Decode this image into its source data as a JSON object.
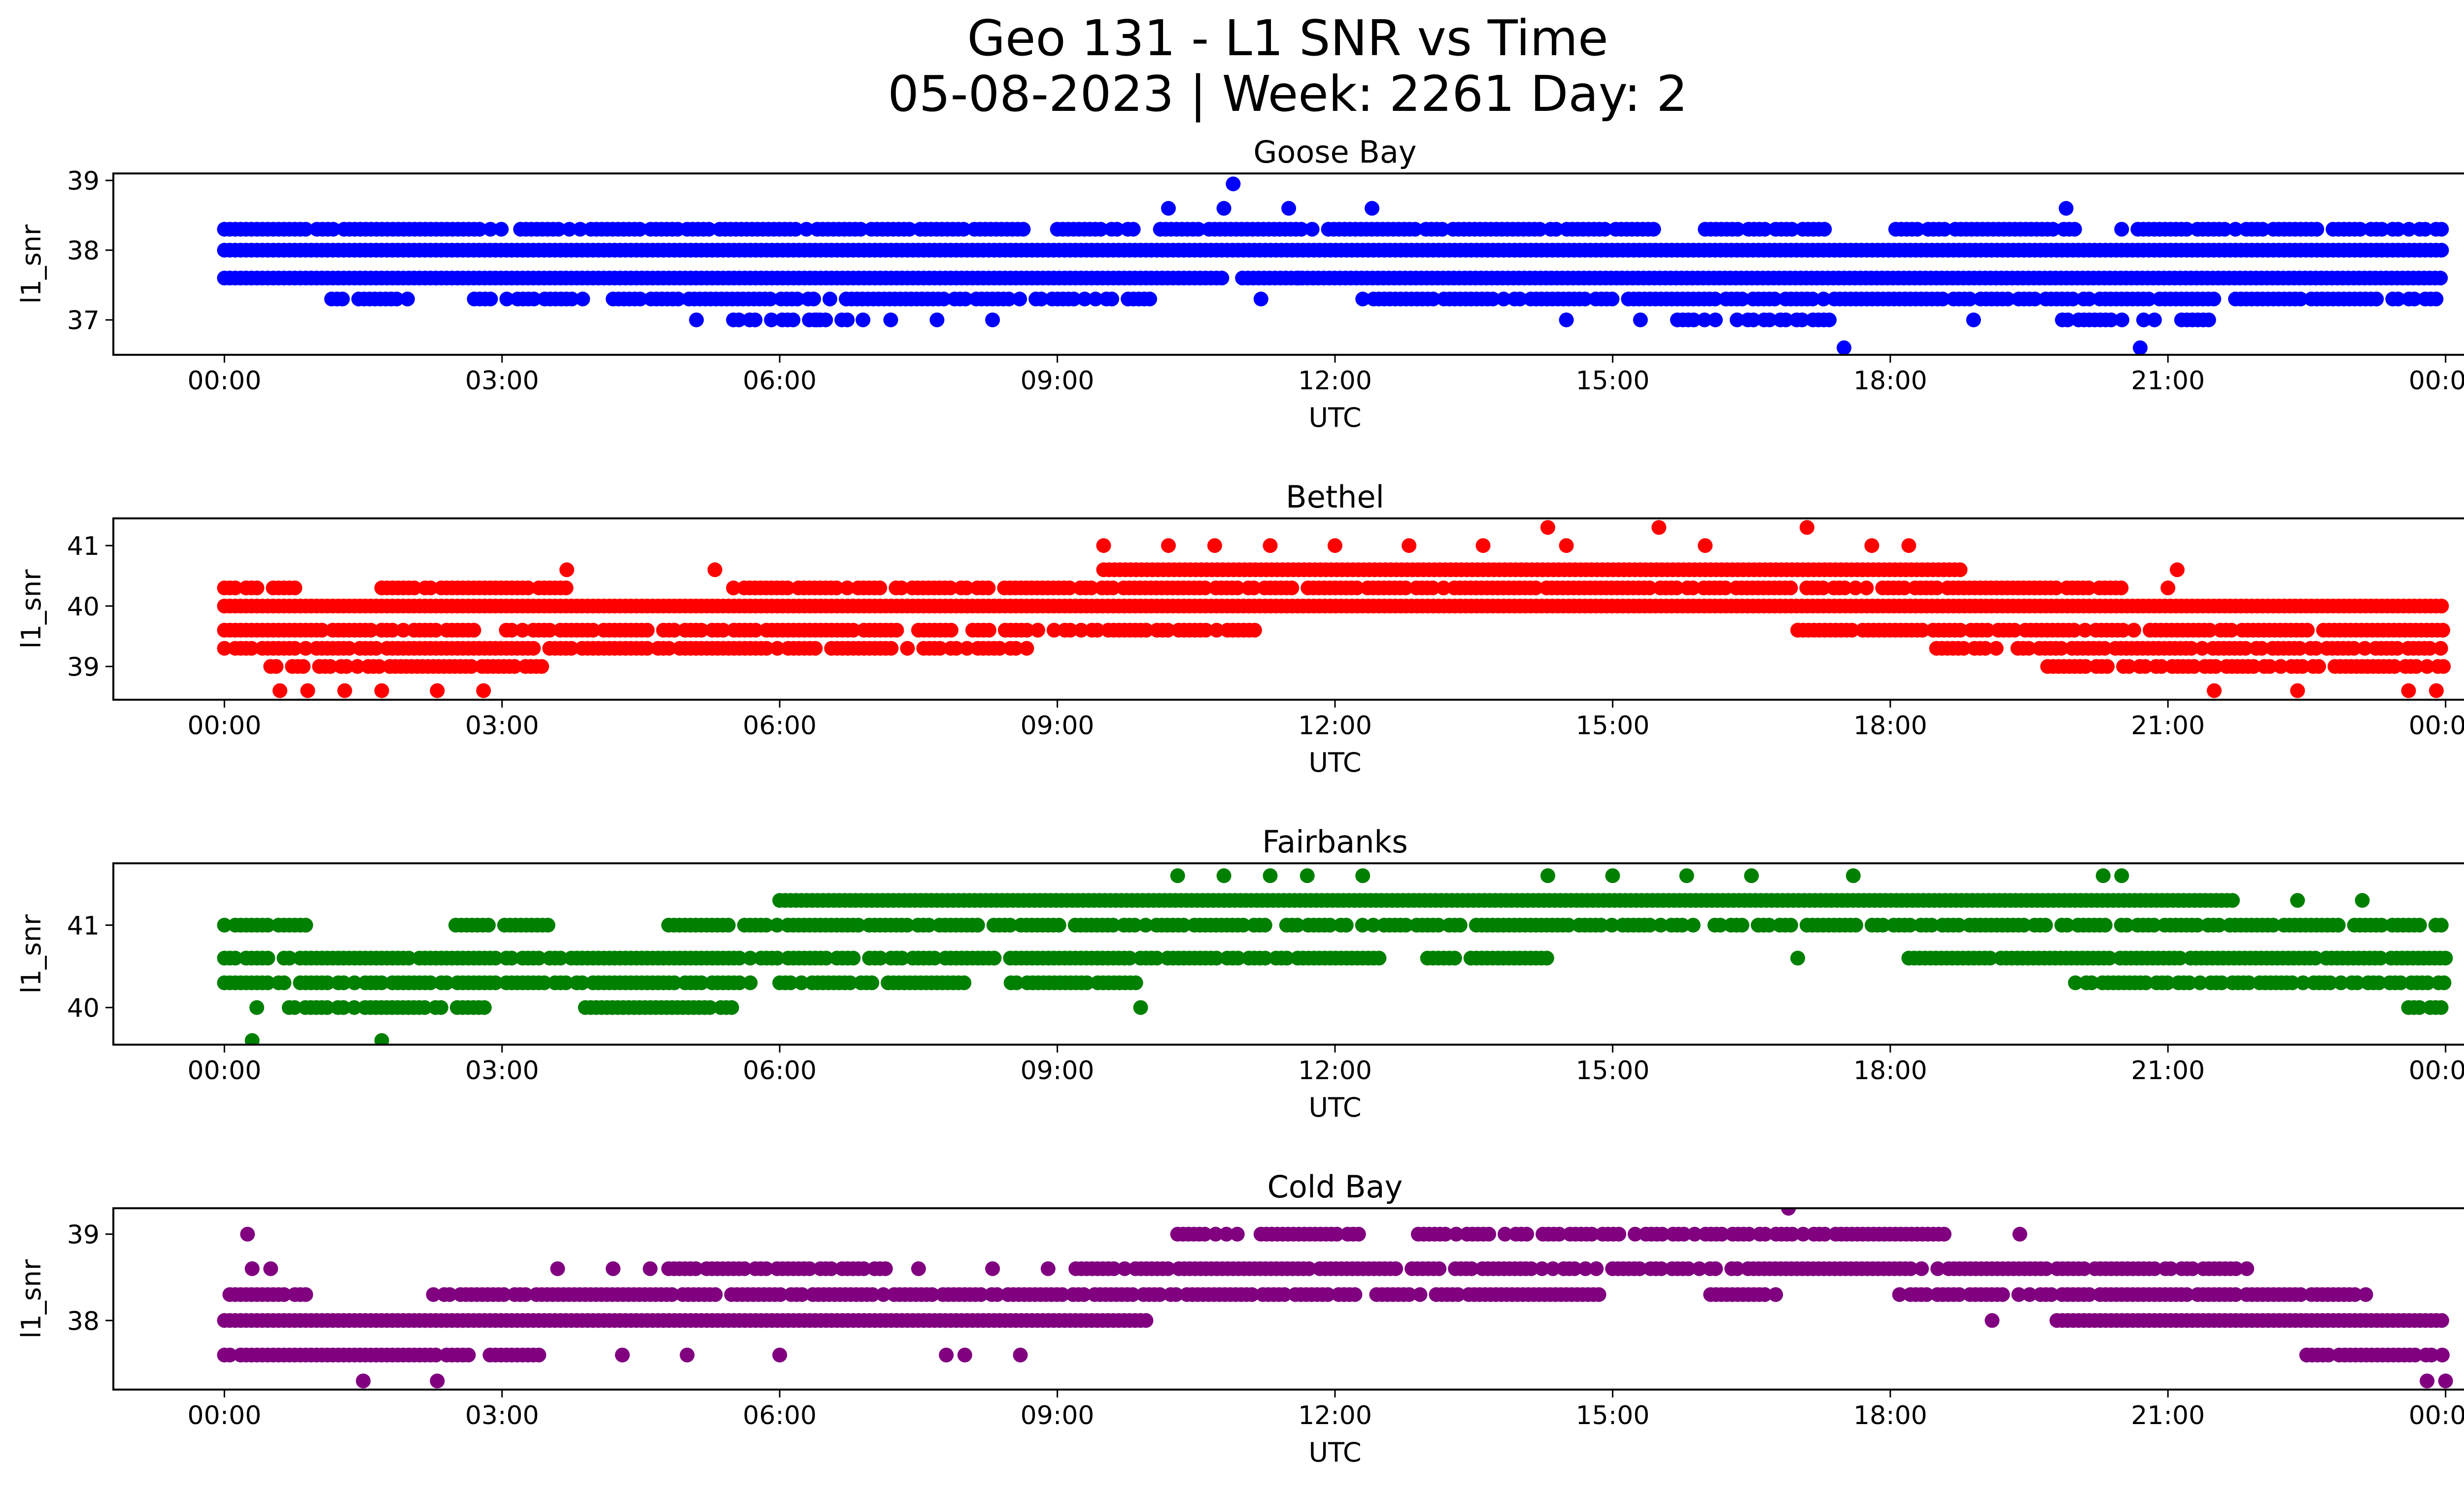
{
  "chart_data": {
    "type": "scatter",
    "title": "Geo 131 - L1 SNR vs Time",
    "subtitle": "05-08-2023 | Week: 2261 Day: 2",
    "x_tick_labels": [
      "00:00",
      "03:00",
      "06:00",
      "09:00",
      "12:00",
      "15:00",
      "18:00",
      "21:00",
      "00:00"
    ],
    "x_ticks_hours": [
      0,
      3,
      6,
      9,
      12,
      15,
      18,
      21,
      24
    ],
    "xlim_hours": [
      -1.2,
      25.2
    ],
    "xlabel": "UTC",
    "ylabel": "l1_snr",
    "grid": false,
    "legend": "none",
    "panels": [
      {
        "title": "Goose Bay",
        "color": "#0000ff",
        "ylim": [
          36.5,
          39.1
        ],
        "y_ticks": [
          37,
          38,
          39
        ],
        "y_tick_labels": [
          "37",
          "38",
          "39"
        ],
        "bands": [
          {
            "y": 38.3,
            "segments": [
              [
                0,
                0.9
              ],
              [
                1.0,
                3.0
              ],
              [
                3.2,
                4.9
              ],
              [
                5.0,
                8.7
              ],
              [
                9.0,
                15.5
              ],
              [
                16.0,
                17.3
              ],
              [
                18.0,
                20.0
              ],
              [
                20.5,
                24
              ]
            ],
            "jitter": 0.15
          },
          {
            "y": 38.0,
            "segments": [
              [
                0,
                24
              ]
            ],
            "jitter": 0
          },
          {
            "y": 37.6,
            "segments": [
              [
                0,
                10.8
              ],
              [
                11.0,
                24
              ]
            ],
            "jitter": 0
          },
          {
            "y": 37.3,
            "segments": [
              [
                1.1,
                2.0
              ],
              [
                2.7,
                3.9
              ],
              [
                4.2,
                10.0
              ],
              [
                12.3,
                24
              ]
            ],
            "jitter": 0.18
          },
          {
            "y": 37.0,
            "segments": [
              [
                5.5,
                6.8
              ],
              [
                15.7,
                17.4
              ],
              [
                19.8,
                21.6
              ]
            ],
            "jitter": 0.3
          }
        ],
        "points": [
          [
            5.1,
            37.0
          ],
          [
            6.4,
            37.0
          ],
          [
            6.9,
            37.0
          ],
          [
            7.2,
            37.0
          ],
          [
            7.7,
            37.0
          ],
          [
            8.3,
            37.0
          ],
          [
            10.2,
            38.6
          ],
          [
            10.8,
            38.6
          ],
          [
            10.9,
            38.95
          ],
          [
            11.5,
            38.6
          ],
          [
            12.4,
            38.6
          ],
          [
            11.2,
            37.3
          ],
          [
            11.6,
            37.6
          ],
          [
            14.5,
            37.0
          ],
          [
            15.3,
            37.0
          ],
          [
            17.5,
            36.6
          ],
          [
            18.9,
            37.0
          ],
          [
            19.9,
            38.6
          ],
          [
            20.7,
            36.6
          ]
        ]
      },
      {
        "title": "Bethel",
        "color": "#ff0000",
        "ylim": [
          38.45,
          41.45
        ],
        "y_ticks": [
          39,
          40,
          41
        ],
        "y_tick_labels": [
          "39",
          "40",
          "41"
        ],
        "bands": [
          {
            "y": 40.6,
            "segments": [
              [
                9.5,
                18.8
              ]
            ],
            "jitter": 0
          },
          {
            "y": 40.3,
            "segments": [
              [
                0,
                0.8
              ],
              [
                1.7,
                3.7
              ],
              [
                5.5,
                20.6
              ]
            ],
            "jitter": 0.15
          },
          {
            "y": 40.0,
            "segments": [
              [
                0,
                24
              ]
            ],
            "jitter": 0
          },
          {
            "y": 39.6,
            "segments": [
              [
                0,
                7.3
              ],
              [
                7.5,
                11.3
              ],
              [
                17.0,
                24
              ]
            ],
            "jitter": 0.15
          },
          {
            "y": 39.3,
            "segments": [
              [
                0,
                8.7
              ],
              [
                18.5,
                24
              ]
            ],
            "jitter": 0.15
          },
          {
            "y": 39.0,
            "segments": [
              [
                0.5,
                3.5
              ],
              [
                19.7,
                24
              ]
            ],
            "jitter": 0.18
          }
        ],
        "points": [
          [
            0.6,
            38.6
          ],
          [
            0.9,
            38.6
          ],
          [
            1.3,
            38.6
          ],
          [
            1.7,
            38.6
          ],
          [
            2.3,
            38.6
          ],
          [
            2.8,
            38.6
          ],
          [
            3.7,
            40.6
          ],
          [
            5.3,
            40.6
          ],
          [
            9.5,
            41.0
          ],
          [
            10.2,
            41.0
          ],
          [
            10.7,
            41.0
          ],
          [
            11.3,
            41.0
          ],
          [
            12.0,
            41.0
          ],
          [
            12.8,
            41.0
          ],
          [
            13.6,
            41.0
          ],
          [
            14.3,
            41.3
          ],
          [
            15.5,
            41.3
          ],
          [
            17.1,
            41.3
          ],
          [
            14.5,
            41.0
          ],
          [
            16.0,
            41.0
          ],
          [
            17.8,
            41.0
          ],
          [
            18.2,
            41.0
          ],
          [
            21.1,
            40.6
          ],
          [
            21.5,
            38.6
          ],
          [
            22.4,
            38.6
          ],
          [
            23.6,
            38.6
          ],
          [
            23.9,
            38.6
          ],
          [
            21.0,
            40.3
          ]
        ]
      },
      {
        "title": "Fairbanks",
        "color": "#008000",
        "ylim": [
          39.55,
          41.75
        ],
        "y_ticks": [
          40,
          41
        ],
        "y_tick_labels": [
          "40",
          "41"
        ],
        "bands": [
          {
            "y": 41.3,
            "segments": [
              [
                6.0,
                21.7
              ]
            ],
            "jitter": 0
          },
          {
            "y": 41.0,
            "segments": [
              [
                0,
                0.9
              ],
              [
                2.5,
                3.5
              ],
              [
                4.8,
                24
              ]
            ],
            "jitter": 0.2
          },
          {
            "y": 40.6,
            "segments": [
              [
                0,
                12.5
              ],
              [
                13.0,
                14.3
              ],
              [
                18.2,
                24
              ]
            ],
            "jitter": 0.1
          },
          {
            "y": 40.3,
            "segments": [
              [
                0,
                5.7
              ],
              [
                6.0,
                8.0
              ],
              [
                8.5,
                9.9
              ],
              [
                20.0,
                24
              ]
            ],
            "jitter": 0.2
          },
          {
            "y": 40.0,
            "segments": [
              [
                0.7,
                2.9
              ],
              [
                3.9,
                5.5
              ],
              [
                23.6,
                24
              ]
            ],
            "jitter": 0.15
          }
        ],
        "points": [
          [
            0.3,
            39.6
          ],
          [
            1.7,
            39.6
          ],
          [
            0.35,
            40.0
          ],
          [
            9.9,
            40.0
          ],
          [
            10.3,
            41.6
          ],
          [
            10.8,
            41.6
          ],
          [
            11.3,
            41.6
          ],
          [
            11.7,
            41.6
          ],
          [
            12.3,
            41.6
          ],
          [
            14.3,
            41.6
          ],
          [
            15.0,
            41.6
          ],
          [
            15.8,
            41.6
          ],
          [
            16.5,
            41.6
          ],
          [
            17.6,
            41.6
          ],
          [
            20.3,
            41.6
          ],
          [
            20.5,
            41.6
          ],
          [
            17.0,
            40.6
          ],
          [
            22.4,
            41.3
          ],
          [
            23.1,
            41.3
          ]
        ]
      },
      {
        "title": "Cold Bay",
        "color": "#800080",
        "ylim": [
          37.2,
          39.3
        ],
        "y_ticks": [
          38,
          39
        ],
        "y_tick_labels": [
          "38",
          "39"
        ],
        "bands": [
          {
            "y": 39.0,
            "segments": [
              [
                10.3,
                11.0
              ],
              [
                11.2,
                12.3
              ],
              [
                12.9,
                18.6
              ]
            ],
            "jitter": 0.2
          },
          {
            "y": 38.6,
            "segments": [
              [
                4.8,
                7.2
              ],
              [
                9.2,
                21.9
              ]
            ],
            "jitter": 0.15
          },
          {
            "y": 38.3,
            "segments": [
              [
                0,
                0.9
              ],
              [
                2.2,
                14.9
              ],
              [
                16.0,
                16.8
              ],
              [
                18.1,
                23.2
              ]
            ],
            "jitter": 0.15
          },
          {
            "y": 38.0,
            "segments": [
              [
                0,
                10.0
              ],
              [
                19.8,
                24
              ]
            ],
            "jitter": 0
          },
          {
            "y": 37.6,
            "segments": [
              [
                0,
                3.4
              ],
              [
                22.5,
                24
              ]
            ],
            "jitter": 0.1
          }
        ],
        "points": [
          [
            0.25,
            39.0
          ],
          [
            0.3,
            38.6
          ],
          [
            0.5,
            38.6
          ],
          [
            1.5,
            37.3
          ],
          [
            2.3,
            37.3
          ],
          [
            3.6,
            38.6
          ],
          [
            4.2,
            38.6
          ],
          [
            4.6,
            38.6
          ],
          [
            4.3,
            37.6
          ],
          [
            5.0,
            37.6
          ],
          [
            6.0,
            37.6
          ],
          [
            7.5,
            38.6
          ],
          [
            7.8,
            37.6
          ],
          [
            8.0,
            37.6
          ],
          [
            8.6,
            37.6
          ],
          [
            8.3,
            38.6
          ],
          [
            8.9,
            38.6
          ],
          [
            16.9,
            39.3
          ],
          [
            19.1,
            38.0
          ],
          [
            19.4,
            39.0
          ],
          [
            23.8,
            37.3
          ],
          [
            24.0,
            37.3
          ],
          [
            22.5,
            37.6
          ]
        ]
      }
    ]
  }
}
